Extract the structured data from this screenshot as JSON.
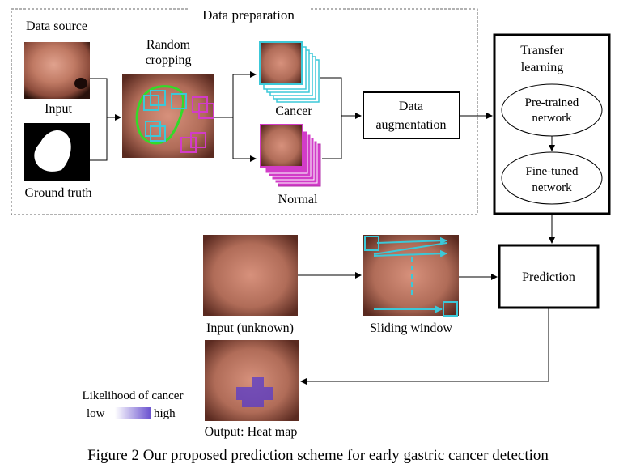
{
  "prep": {
    "title": "Data preparation",
    "data_source": "Data source",
    "input": "Input",
    "ground_truth": "Ground truth",
    "random_cropping_1": "Random",
    "random_cropping_2": "cropping",
    "cancer": "Cancer",
    "normal": "Normal",
    "augmentation_1": "Data",
    "augmentation_2": "augmentation"
  },
  "transfer": {
    "title_1": "Transfer",
    "title_2": "learning",
    "pretrained_1": "Pre-trained",
    "pretrained_2": "network",
    "finetuned_1": "Fine-tuned",
    "finetuned_2": "network"
  },
  "predict": {
    "input_unknown": "Input (unknown)",
    "sliding_window": "Sliding window",
    "prediction": "Prediction",
    "output": "Output: Heat map",
    "likelihood": "Likelihood of cancer",
    "low": "low",
    "high": "high"
  },
  "caption": "Figure 2 Our proposed prediction scheme for early gastric cancer detection",
  "colors": {
    "cyan": "#3cc8d8",
    "magenta": "#d23cc8",
    "green": "#32dc28",
    "heat": "#5a3cc8",
    "tissue": "#b9735f"
  }
}
